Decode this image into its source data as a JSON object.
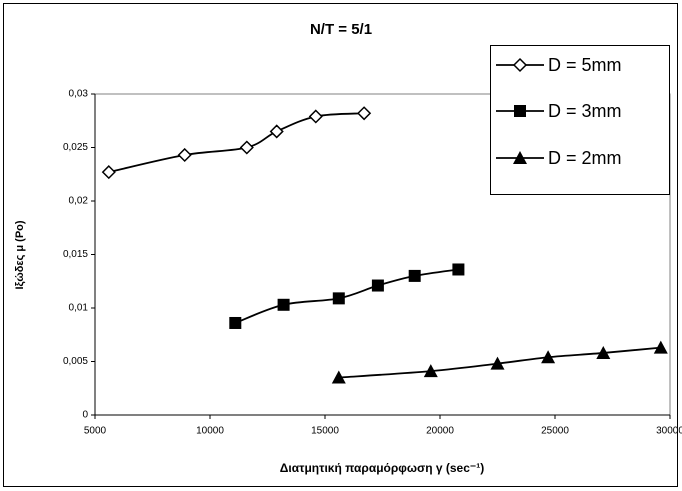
{
  "chart_data": {
    "type": "scatter",
    "title": "N/T = 5/1",
    "x_label": "Διατμητική παραμόρφωση γ (sec⁻¹)",
    "y_label": "Ιξώδες μ (Po)",
    "xlim": [
      5000,
      30000
    ],
    "xticks": [
      5000,
      10000,
      15000,
      20000,
      25000,
      30000
    ],
    "ylim": [
      0,
      0.03
    ],
    "yticks": [
      0,
      {
        "value": 0.005,
        "label": "0,005"
      },
      {
        "value": 0.01,
        "label": "0,01"
      },
      {
        "value": 0.015,
        "label": "0,015"
      },
      {
        "value": 0.02,
        "label": "0,02"
      },
      {
        "value": 0.025,
        "label": "0,025"
      },
      {
        "value": 0.03,
        "label": "0,03"
      }
    ],
    "legend": "upper right",
    "series": [
      {
        "name": "D = 5mm",
        "color": "#000000",
        "marker": "diamond",
        "x": [
          5600,
          8900,
          11600,
          12900,
          14600,
          16700
        ],
        "values": [
          0.0227,
          0.0243,
          0.025,
          0.0265,
          0.0279,
          0.0282
        ]
      },
      {
        "name": "D = 3mm",
        "color": "#000000",
        "marker": "square",
        "x": [
          11100,
          13200,
          15600,
          17300,
          18900,
          20800
        ],
        "values": [
          0.0086,
          0.0103,
          0.0109,
          0.0121,
          0.013,
          0.0136
        ]
      },
      {
        "name": "D = 2mm",
        "color": "#000000",
        "marker": "triangle",
        "x": [
          15600,
          19600,
          22500,
          24700,
          27100,
          29600
        ],
        "values": [
          0.0035,
          0.0041,
          0.0048,
          0.0054,
          0.0058,
          0.0063
        ]
      }
    ]
  }
}
